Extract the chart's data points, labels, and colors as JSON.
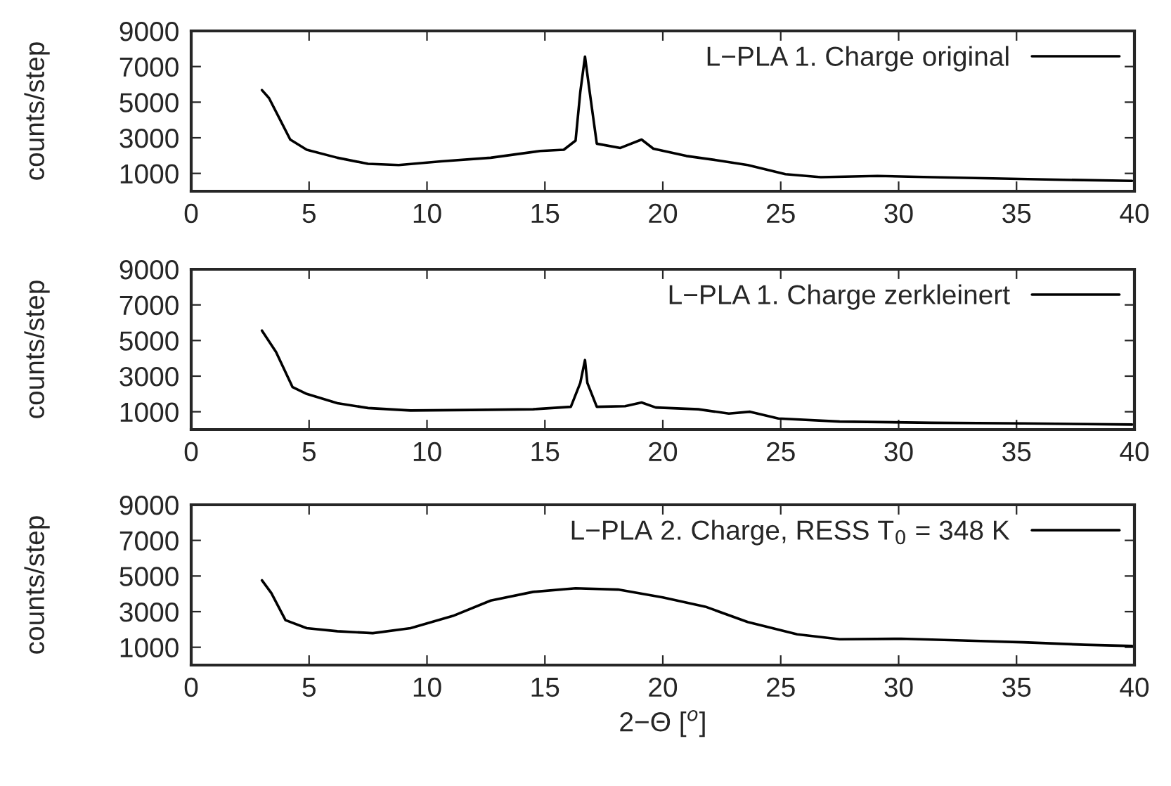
{
  "chart_data": [
    {
      "type": "line",
      "ylabel": "counts/step",
      "xlim": [
        0,
        40
      ],
      "xticks": [
        0,
        5,
        10,
        15,
        20,
        25,
        30,
        35,
        40
      ],
      "ylim": [
        0,
        9000
      ],
      "yticks": [
        1000,
        3000,
        5000,
        7000,
        9000
      ],
      "grid": false,
      "legend": "top right",
      "tick_labels": true,
      "series": [
        {
          "name": "L−PLA 1. Charge original",
          "color": "#000000",
          "x": [
            3.0,
            3.3,
            3.7,
            4.2,
            4.9,
            6.2,
            7.5,
            8.8,
            10.6,
            12.7,
            14.8,
            15.8,
            16.3,
            16.5,
            16.7,
            16.9,
            17.2,
            18.2,
            19.1,
            19.6,
            21.0,
            22.3,
            23.6,
            25.2,
            26.7,
            29.1,
            31.4,
            34.0,
            36.6,
            39.9
          ],
          "values": [
            5680,
            5230,
            4200,
            2900,
            2330,
            1880,
            1540,
            1470,
            1680,
            1880,
            2260,
            2330,
            2840,
            5570,
            7560,
            5570,
            2670,
            2430,
            2900,
            2390,
            1980,
            1740,
            1470,
            960,
            790,
            860,
            790,
            720,
            650,
            580
          ]
        }
      ]
    },
    {
      "type": "line",
      "ylabel": "counts/step",
      "xlim": [
        0,
        40
      ],
      "xticks": [
        0,
        5,
        10,
        15,
        20,
        25,
        30,
        35,
        40
      ],
      "ylim": [
        0,
        9000
      ],
      "yticks": [
        1000,
        3000,
        5000,
        7000,
        9000
      ],
      "grid": false,
      "legend": "top right",
      "series": [
        {
          "name": "L−PLA 1. Charge zerkleinert",
          "color": "#000000",
          "x": [
            3.0,
            3.6,
            4.3,
            4.9,
            6.2,
            7.5,
            9.3,
            11.9,
            14.5,
            16.1,
            16.5,
            16.7,
            16.8,
            17.2,
            18.4,
            19.1,
            19.7,
            21.5,
            22.8,
            23.7,
            24.9,
            27.5,
            31.4,
            35.3,
            39.9
          ],
          "values": [
            5560,
            4350,
            2380,
            2000,
            1480,
            1210,
            1070,
            1100,
            1140,
            1280,
            2620,
            3900,
            2620,
            1280,
            1310,
            1520,
            1240,
            1140,
            900,
            1000,
            620,
            450,
            380,
            345,
            280
          ]
        }
      ]
    },
    {
      "type": "line",
      "ylabel": "counts/step",
      "xlabel": "2−Θ [$^{o}$]",
      "xlim": [
        0,
        40
      ],
      "xticks": [
        0,
        5,
        10,
        15,
        20,
        25,
        30,
        35,
        40
      ],
      "ylim": [
        0,
        9000
      ],
      "yticks": [
        1000,
        3000,
        5000,
        7000,
        9000
      ],
      "grid": false,
      "legend": "top right",
      "series": [
        {
          "name": "L−PLA 2. Charge, RESS T$_{0}$ = 348 K",
          "color": "#000000",
          "x": [
            3.0,
            3.4,
            4.0,
            4.9,
            6.2,
            7.7,
            9.3,
            11.1,
            12.7,
            14.5,
            16.3,
            18.1,
            20.0,
            21.8,
            23.6,
            25.7,
            27.5,
            30.1,
            32.7,
            35.3,
            37.9,
            39.9
          ],
          "values": [
            4760,
            4040,
            2520,
            2070,
            1900,
            1790,
            2070,
            2760,
            3620,
            4110,
            4310,
            4240,
            3800,
            3280,
            2420,
            1730,
            1450,
            1480,
            1380,
            1280,
            1140,
            1070
          ]
        }
      ]
    }
  ]
}
